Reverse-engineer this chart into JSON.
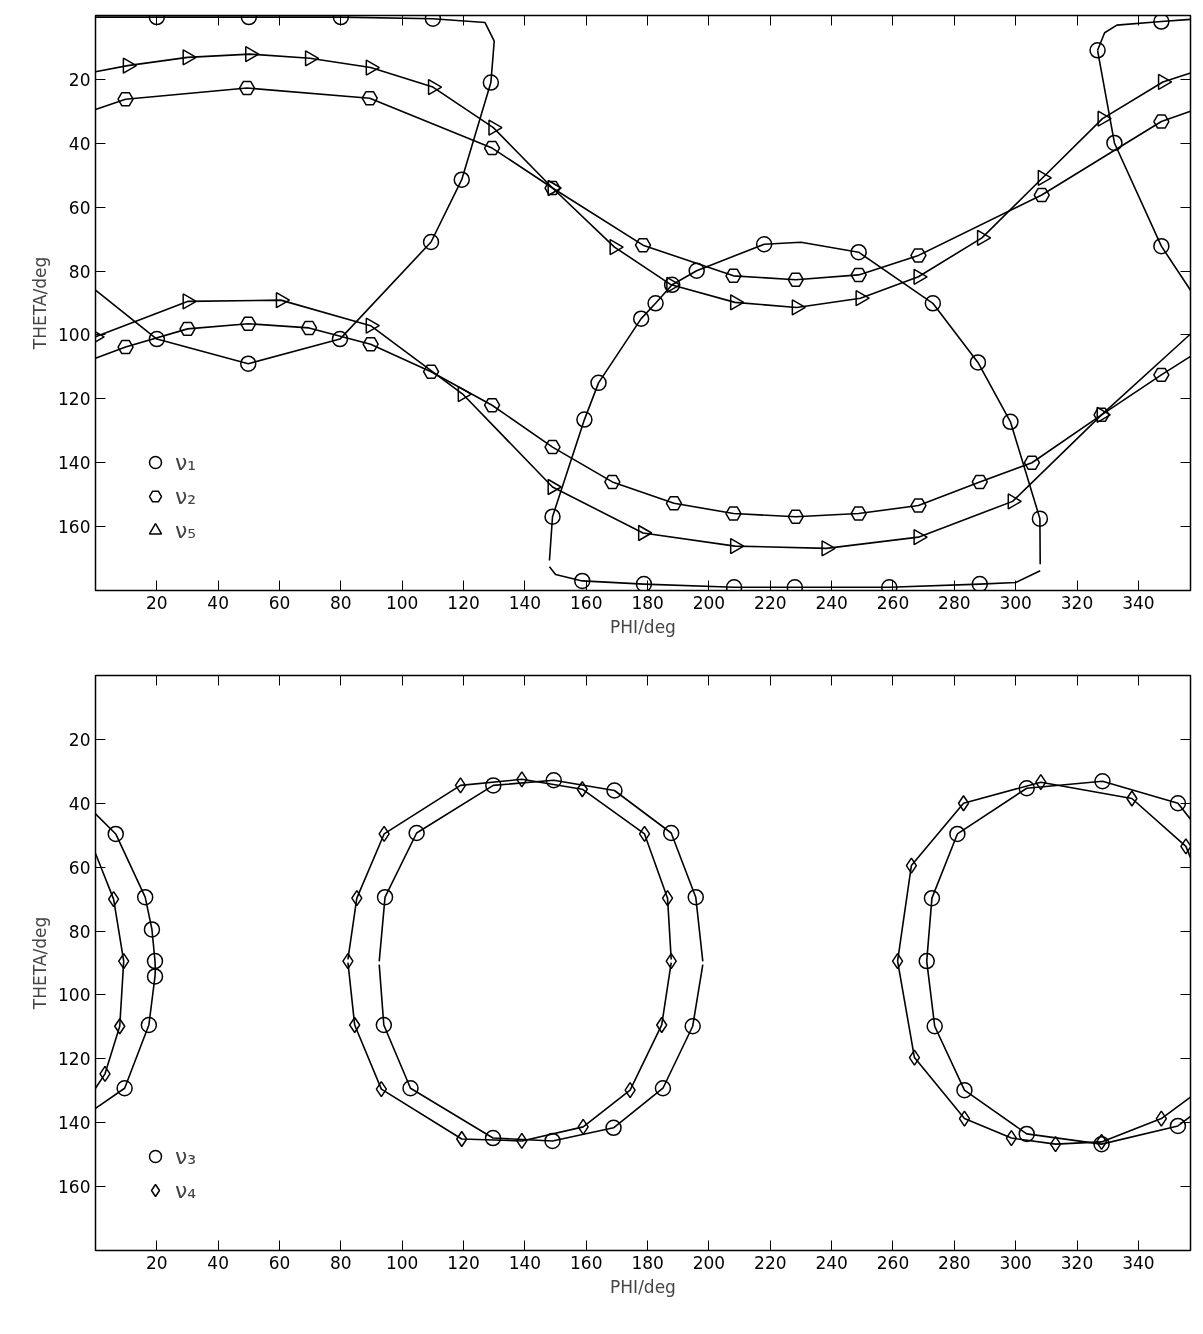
{
  "chart_data": [
    {
      "type": "scatter",
      "xlabel": "PHI/deg",
      "ylabel": "THETA/deg",
      "xlim": [
        0,
        357
      ],
      "ylim": [
        180,
        0
      ],
      "xticks": [
        20,
        40,
        60,
        80,
        100,
        120,
        140,
        160,
        180,
        200,
        220,
        240,
        260,
        280,
        300,
        320,
        340
      ],
      "yticks": [
        20,
        40,
        60,
        80,
        100,
        120,
        140,
        160
      ],
      "legend": "bottom left",
      "series": [
        {
          "name": "ν₁",
          "marker": "circle",
          "color": "#000000",
          "x": [
            20,
            50,
            80,
            110,
            128.9,
            119.4,
            109.4,
            79.7,
            49.8,
            20,
            149,
            159.4,
            164,
            177.9,
            182.6,
            188,
            196,
            218,
            248.8,
            273,
            287.7,
            298.3,
            307.9,
            158.7,
            178.8,
            208.2,
            228,
            258.8,
            288.3,
            326.7,
            332.2,
            347.5,
            347.5
          ],
          "values": [
            0.5,
            0.5,
            0.5,
            1,
            21,
            51.4,
            70.9,
            101.3,
            109,
            101.3,
            156.9,
            126.5,
            115,
            94.9,
            90.1,
            84.3,
            79.9,
            71.6,
            74.1,
            90.1,
            108.6,
            127.2,
            157.5,
            177,
            178,
            179,
            179,
            179,
            178,
            10.9,
            39.9,
            72.2,
            1.9
          ]
        },
        {
          "name": "ν₂",
          "color": "#000000",
          "x": [
            9.8,
            49.4,
            89.4,
            129.3,
            149,
            178.5,
            208,
            228.3,
            248.8,
            268.3,
            308.5,
            347.5,
            9.8,
            30,
            49.8,
            69.6,
            89.7,
            109.4,
            129.3,
            149,
            168.5,
            188.6,
            208,
            228.3,
            248.8,
            268.3,
            288.3,
            305.3,
            328,
            347.5
          ],
          "values": [
            26.2,
            22.7,
            25.9,
            41.5,
            54,
            71.9,
            81.5,
            82.7,
            81.2,
            75.1,
            56.2,
            33.2,
            103.8,
            98.1,
            96.5,
            97.8,
            102.9,
            111.5,
            122,
            135.1,
            146,
            152.7,
            155.9,
            156.9,
            155.9,
            153.4,
            146,
            140,
            125,
            112.5
          ]
        },
        {
          "name": "ν₅",
          "marker": "triangle",
          "color": "#000000",
          "x": [
            10.5,
            30,
            50.4,
            69.9,
            89.7,
            110,
            129.7,
            149,
            169.2,
            187.7,
            208.5,
            228.6,
            249.4,
            268.3,
            289,
            308.8,
            328.3,
            348,
            0,
            30,
            60.4,
            89.7,
            119.7,
            149,
            178.5,
            208.5,
            238.3,
            268.3,
            299,
            328
          ],
          "values": [
            15.7,
            13.1,
            12.1,
            13.4,
            16.3,
            22.4,
            35.1,
            54,
            72.5,
            84.3,
            89.8,
            91.4,
            88.5,
            81.8,
            69.6,
            50.8,
            32.3,
            20.8,
            100.6,
            89.5,
            89.1,
            97.1,
            118.5,
            147.6,
            162,
            166.1,
            166.8,
            163.3,
            152.1,
            125
          ]
        },
        {
          "type": "line",
          "color": "#000000",
          "x": [
            0,
            20,
            49.8,
            79.7,
            109.4,
            119.4,
            128.9,
            130
          ],
          "values": [
            86,
            101.3,
            109,
            101.3,
            70.9,
            51.4,
            21,
            8
          ]
        },
        {
          "type": "line",
          "color": "#000000",
          "x": [
            0,
            20,
            50,
            80,
            110,
            127,
            130
          ],
          "values": [
            0.5,
            0.5,
            0.5,
            0.5,
            1,
            2.2,
            8
          ]
        },
        {
          "type": "line",
          "color": "#000000",
          "x": [
            148,
            149,
            159.4,
            164,
            177.9,
            182.6,
            188,
            196,
            218,
            230,
            248.8,
            273,
            287.7,
            298.3,
            307.9,
            308
          ],
          "values": [
            170.6,
            156.9,
            126.5,
            115,
            94.9,
            90.1,
            84.3,
            79.9,
            71.6,
            71,
            74.1,
            90.1,
            108.6,
            127.2,
            157.5,
            171.8
          ]
        },
        {
          "type": "line",
          "color": "#000000",
          "x": [
            148,
            150,
            158.7,
            178.8,
            208.2,
            228,
            258.8,
            288.3,
            300,
            308
          ],
          "values": [
            172.6,
            175,
            177,
            178,
            179,
            179,
            179,
            178,
            177.5,
            173.8
          ]
        },
        {
          "type": "line",
          "color": "#000000",
          "x": [
            326.7,
            329,
            333,
            347.5,
            357
          ],
          "values": [
            10.9,
            5.4,
            3,
            1.9,
            1.2
          ]
        },
        {
          "type": "line",
          "color": "#000000",
          "x": [
            326.7,
            332.2,
            347.5,
            357
          ],
          "values": [
            10.9,
            39.9,
            72.2,
            86
          ]
        },
        {
          "type": "line",
          "color": "#000000",
          "x": [
            0,
            9.8,
            49.4,
            89.4,
            129.3,
            149,
            178.5,
            208,
            228.3,
            248.8,
            268.3,
            308.5,
            347.5,
            357
          ],
          "values": [
            29.4,
            26.2,
            22.7,
            25.9,
            41.5,
            54,
            71.9,
            81.5,
            82.7,
            81.2,
            75.1,
            56.2,
            33.2,
            30
          ]
        },
        {
          "type": "line",
          "color": "#000000",
          "x": [
            0,
            9.8,
            30,
            49.8,
            69.6,
            89.7,
            109.4,
            129.3,
            149,
            168.5,
            188.6,
            208,
            228.3,
            248.8,
            268.3,
            288.3,
            305.3,
            328,
            347.5,
            357
          ],
          "values": [
            107.3,
            103.8,
            98.1,
            96.5,
            97.8,
            102.9,
            111.5,
            122,
            135.1,
            146,
            152.7,
            155.9,
            156.9,
            155.9,
            153.4,
            146,
            140,
            125,
            112.5,
            106.7
          ]
        },
        {
          "type": "line",
          "color": "#000000",
          "x": [
            0,
            10.5,
            30,
            50.4,
            69.9,
            89.7,
            110,
            129.7,
            149,
            169.2,
            187.7,
            208.5,
            228.6,
            249.4,
            268.3,
            289,
            308.8,
            328.3,
            348,
            357
          ],
          "values": [
            17.6,
            15.7,
            13.1,
            12.1,
            13.4,
            16.3,
            22.4,
            35.1,
            54,
            72.5,
            84.3,
            89.8,
            91.4,
            88.5,
            81.8,
            69.6,
            50.8,
            32.3,
            20.8,
            18
          ]
        },
        {
          "type": "line",
          "color": "#000000",
          "x": [
            0,
            30,
            60.4,
            89.7,
            119.7,
            149,
            178.5,
            208.5,
            238.3,
            268.3,
            299,
            328,
            357
          ],
          "values": [
            100.6,
            89.5,
            89.1,
            97.1,
            118.5,
            147.6,
            162,
            166.1,
            166.8,
            163.3,
            152.1,
            125,
            99.7
          ]
        }
      ]
    },
    {
      "type": "scatter",
      "xlabel": "PHI/deg",
      "ylabel": "THETA/deg",
      "xlim": [
        0,
        357
      ],
      "ylim": [
        180,
        0
      ],
      "xticks": [
        20,
        40,
        60,
        80,
        100,
        120,
        140,
        160,
        180,
        200,
        220,
        240,
        260,
        280,
        300,
        320,
        340
      ],
      "yticks": [
        20,
        40,
        60,
        80,
        100,
        120,
        140,
        160
      ],
      "legend": "bottom left",
      "series": [
        {
          "name": "ν₃",
          "marker": "circle",
          "color": "#000000",
          "x": [
            129.7,
            149.4,
            169.2,
            187.7,
            195.7,
            194.7,
            185,
            168.9,
            149,
            129.6,
            102.7,
            94,
            94.4,
            104.7,
            303.6,
            328.3,
            352.9,
            281,
            272.7,
            271,
            273.6,
            283.3,
            303.6,
            328,
            352.9,
            6.6,
            16.2,
            18.4,
            19.4,
            19.4,
            17.4,
            9.5
          ],
          "values": [
            34.4,
            32.8,
            36,
            49.3,
            69.4,
            109.8,
            129.2,
            141.6,
            145.7,
            144.8,
            129.2,
            109.4,
            69.4,
            49.3,
            35.3,
            33.1,
            40,
            49.6,
            69.7,
            89.4,
            109.8,
            129.8,
            143.5,
            146.7,
            141,
            49.6,
            69.4,
            79.5,
            89.4,
            94.2,
            109.4,
            129.2
          ]
        },
        {
          "name": "ν₄",
          "marker": "diamond",
          "color": "#000000",
          "x": [
            119,
            139,
            158.7,
            179,
            186.5,
            187.7,
            184.6,
            174.3,
            159,
            139,
            119.4,
            93.2,
            84.5,
            82.3,
            85.2,
            94.1,
            308.2,
            283,
            266,
            261.5,
            267,
            283.3,
            298.6,
            313,
            328,
            347.5,
            337.9,
            355.5,
            5.9,
            9.2,
            7.9,
            3.1
          ],
          "values": [
            34.4,
            32.5,
            35.6,
            49.6,
            69.7,
            89.4,
            109.4,
            129.8,
            141.3,
            145.7,
            145.1,
            129.5,
            109.4,
            89.4,
            69.7,
            49.6,
            33.4,
            40,
            59.5,
            89.4,
            119.6,
            138.7,
            144.8,
            146.7,
            146,
            138.7,
            38.5,
            53.5,
            70,
            89.4,
            109.8,
            124.7
          ]
        },
        {
          "type": "line",
          "color": "#000000",
          "x": [
            92.5,
            94.4,
            104.7,
            129.7,
            149.4,
            169.2,
            187.7,
            195.7,
            198
          ],
          "values": [
            89.5,
            69.4,
            49.3,
            34.4,
            32.8,
            36,
            49.3,
            69.4,
            89.5
          ]
        },
        {
          "type": "line",
          "color": "#000000",
          "x": [
            92.5,
            94,
            102.7,
            129.6,
            149,
            168.9,
            185,
            194.7,
            198
          ],
          "values": [
            90.5,
            109.4,
            129.2,
            144.8,
            145.7,
            141.6,
            129.2,
            109.8,
            90.5
          ]
        },
        {
          "type": "line",
          "color": "#000000",
          "x": [
            271,
            272.7,
            281,
            303.6,
            328.3,
            352.9,
            357
          ],
          "values": [
            89.4,
            69.7,
            49.6,
            35.3,
            33.1,
            40,
            45
          ]
        },
        {
          "type": "line",
          "color": "#000000",
          "x": [
            271,
            273.6,
            283.3,
            303.6,
            328,
            352.9,
            357
          ],
          "values": [
            89.4,
            109.8,
            129.8,
            143.5,
            146.7,
            141,
            138
          ]
        },
        {
          "type": "line",
          "color": "#000000",
          "x": [
            0,
            6.6,
            16.2,
            18.4,
            19.4,
            19.5
          ],
          "values": [
            43.3,
            49.6,
            69.4,
            79.5,
            89.4,
            92
          ]
        },
        {
          "type": "line",
          "color": "#000000",
          "x": [
            0,
            9.5,
            17.4,
            19.4,
            19.5
          ],
          "values": [
            135.5,
            129.2,
            109.4,
            94.2,
            92
          ]
        },
        {
          "type": "line",
          "color": "#000000",
          "x": [
            82.3,
            85.2,
            94.1,
            119,
            139,
            158.7,
            179,
            186.5,
            187.7
          ],
          "values": [
            88.9,
            69.7,
            49.6,
            34.4,
            32.5,
            35.6,
            49.6,
            69.7,
            88.9
          ]
        },
        {
          "type": "line",
          "color": "#000000",
          "x": [
            82.3,
            84.5,
            93.2,
            119.4,
            139,
            159,
            174.3,
            184.6,
            187.7
          ],
          "values": [
            89.9,
            109.4,
            129.5,
            145.1,
            145.7,
            141.3,
            129.8,
            109.4,
            89.9
          ]
        },
        {
          "type": "line",
          "color": "#000000",
          "x": [
            261.5,
            266,
            283,
            308.2,
            337.9,
            355.5,
            357
          ],
          "values": [
            89.4,
            59.5,
            40,
            33.4,
            38.5,
            53.5,
            57
          ]
        },
        {
          "type": "line",
          "color": "#000000",
          "x": [
            261.5,
            267,
            283.3,
            298.6,
            313,
            328,
            347.5,
            357
          ],
          "values": [
            89.4,
            119.6,
            138.7,
            144.8,
            146.7,
            146,
            138.7,
            132
          ]
        },
        {
          "type": "line",
          "color": "#000000",
          "x": [
            0,
            5.9,
            9.2
          ],
          "values": [
            55.7,
            70,
            89.4
          ]
        },
        {
          "type": "line",
          "color": "#000000",
          "x": [
            0,
            3.1,
            7.9,
            9.2
          ],
          "values": [
            129.2,
            124.7,
            109.8,
            89.4
          ]
        }
      ]
    }
  ]
}
